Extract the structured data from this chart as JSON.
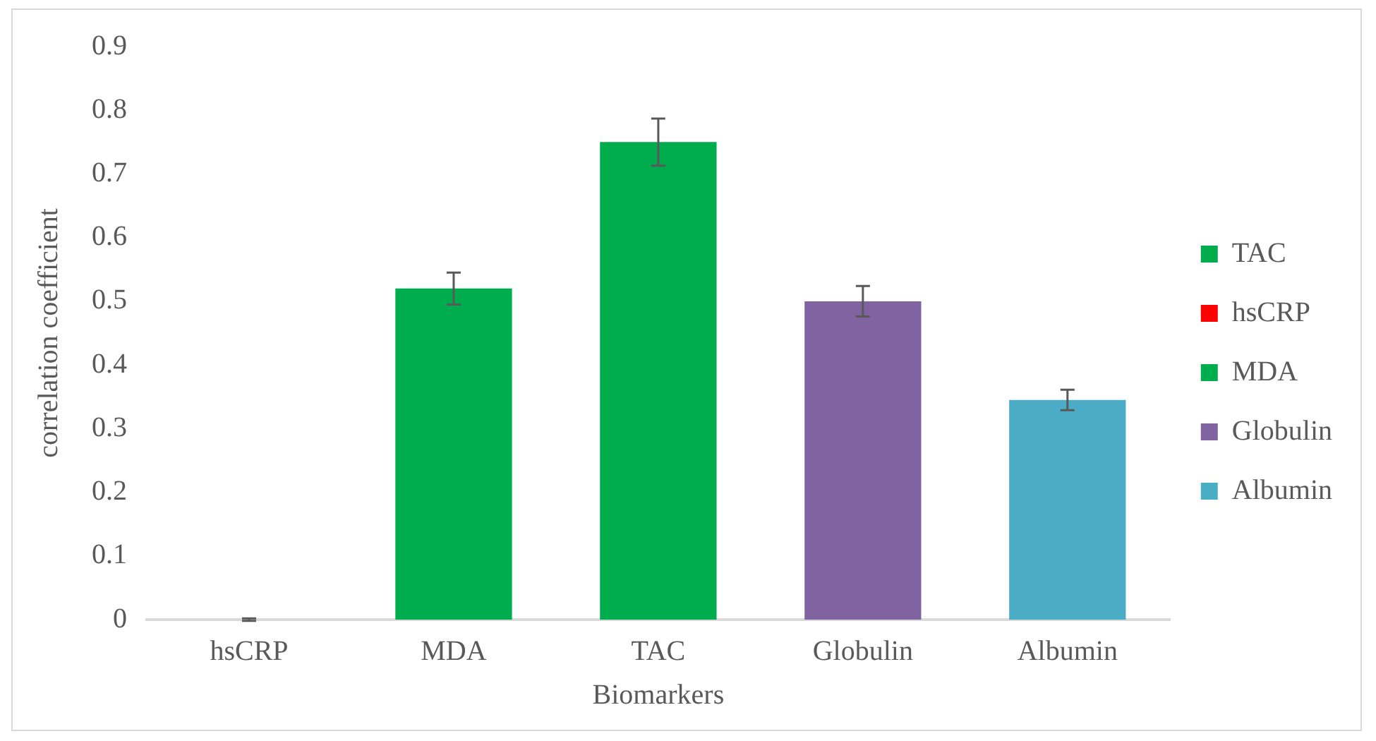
{
  "chart_data": {
    "type": "bar",
    "xlabel": "Biomarkers",
    "ylabel": "correlation coefficient",
    "categories": [
      "hsCRP",
      "MDA",
      "TAC",
      "Globulin",
      "Albumin"
    ],
    "series": [
      {
        "name": "TAC",
        "color": "#00ad4e",
        "values": [
          null,
          null,
          0.75,
          null,
          null
        ],
        "errors": [
          null,
          null,
          0.037,
          null,
          null
        ]
      },
      {
        "name": "hsCRP",
        "color": "#ff0000",
        "values": [
          0,
          null,
          null,
          null,
          null
        ],
        "errors": [
          0.002,
          null,
          null,
          null,
          null
        ]
      },
      {
        "name": "MDA",
        "color": "#00ad4e",
        "values": [
          null,
          0.52,
          null,
          null,
          null
        ],
        "errors": [
          null,
          0.025,
          null,
          null,
          null
        ]
      },
      {
        "name": "Globulin",
        "color": "#8064a2",
        "values": [
          null,
          null,
          null,
          0.5,
          null
        ],
        "errors": [
          null,
          null,
          null,
          0.024,
          null
        ]
      },
      {
        "name": "Albumin",
        "color": "#4bacc6",
        "values": [
          null,
          null,
          null,
          null,
          0.345
        ],
        "errors": [
          null,
          null,
          null,
          null,
          0.016
        ]
      }
    ],
    "ylim": [
      0,
      0.9
    ],
    "yticks": [
      0,
      0.1,
      0.2,
      0.3,
      0.4,
      0.5,
      0.6,
      0.7,
      0.8,
      0.9
    ],
    "grid": false,
    "legend": "right"
  }
}
